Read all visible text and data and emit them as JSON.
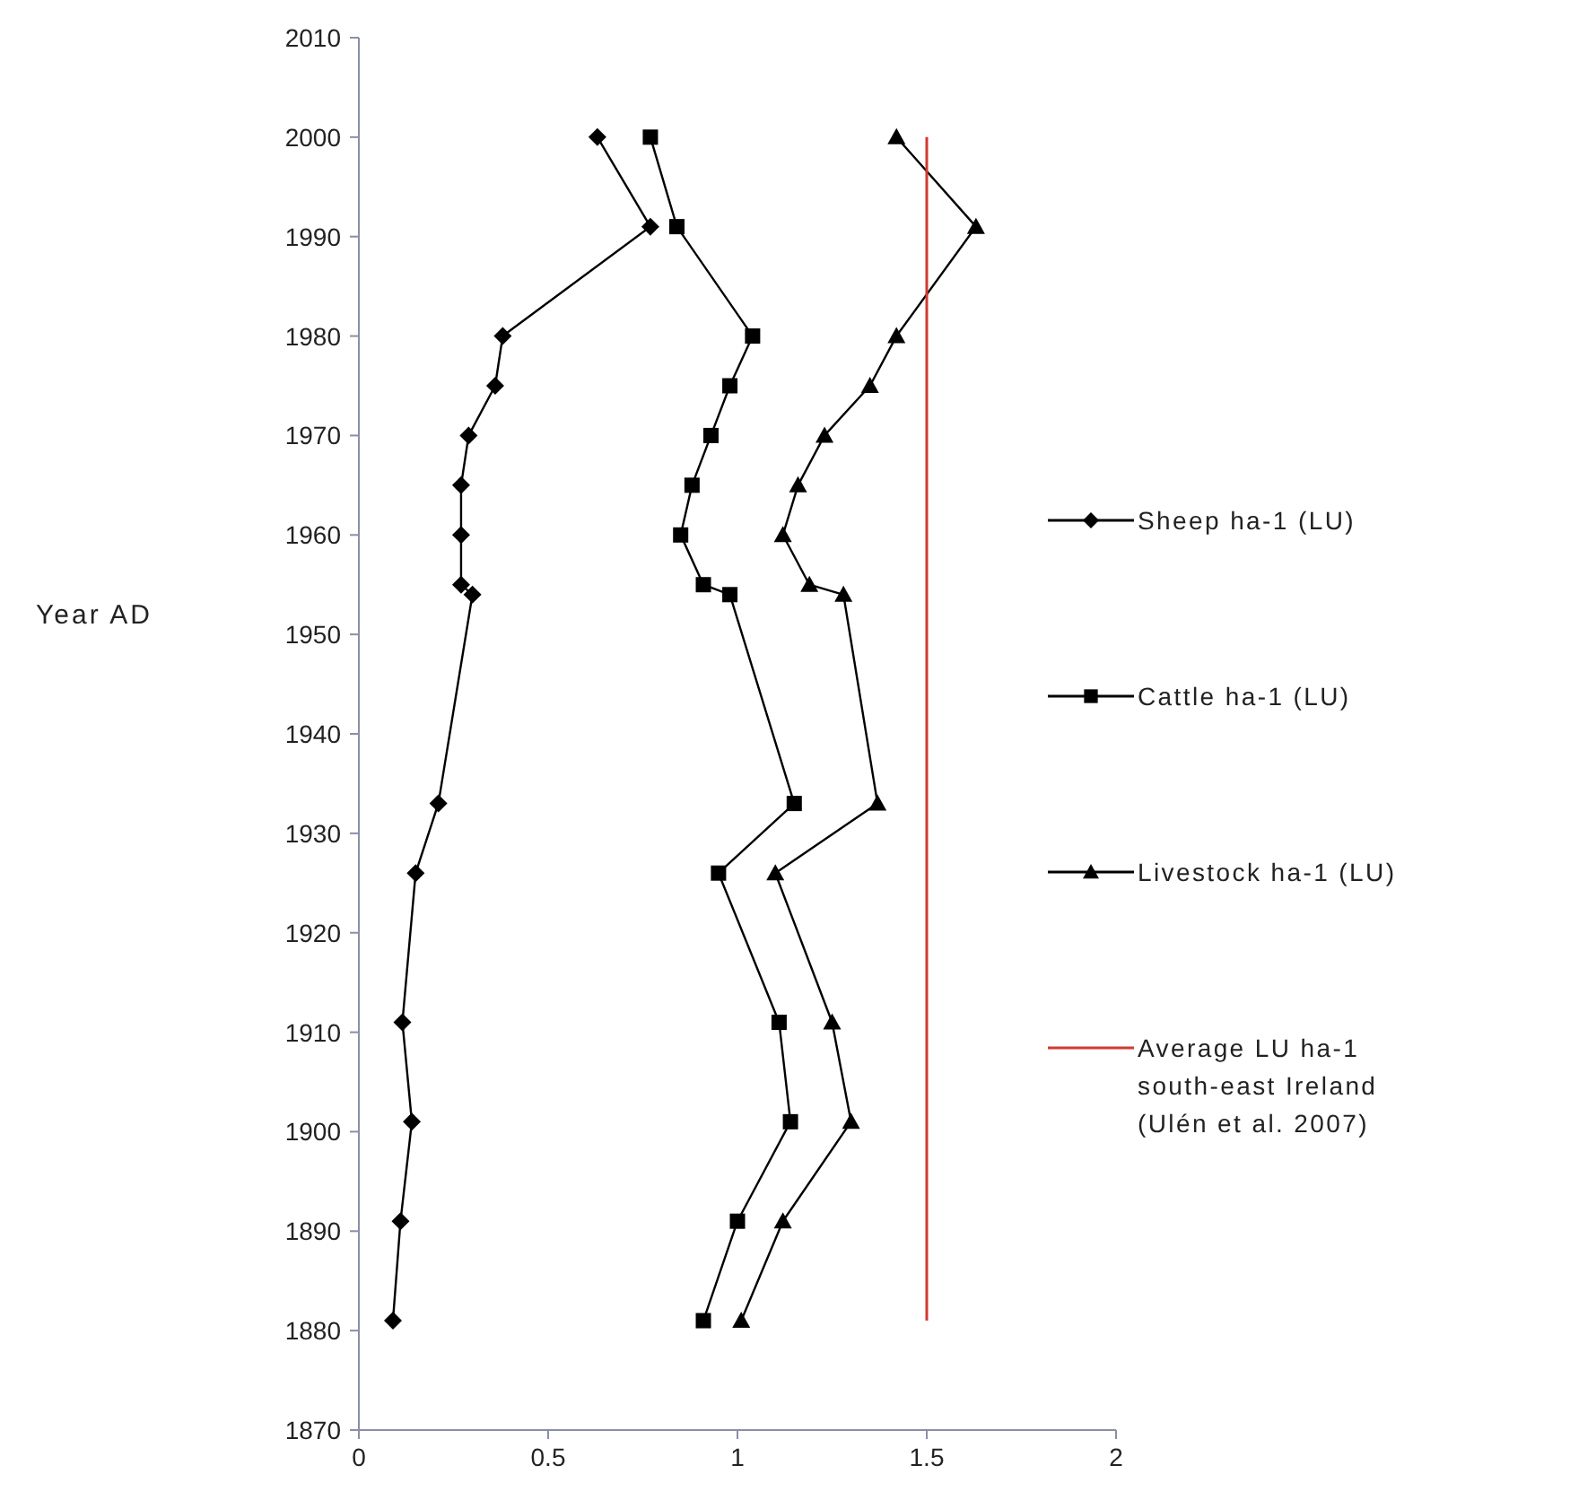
{
  "chart_data": {
    "type": "line",
    "ylabel": "Year AD",
    "xlim": [
      0,
      2
    ],
    "xticks": [
      0,
      0.5,
      1,
      1.5,
      2
    ],
    "ylim": [
      1870,
      2010
    ],
    "yticks": [
      1870,
      1880,
      1890,
      1900,
      1910,
      1920,
      1930,
      1940,
      1950,
      1960,
      1970,
      1980,
      1990,
      2000,
      2010
    ],
    "grid": false,
    "legend": "right",
    "line_style": "solid",
    "series": [
      {
        "name": "Sheep ha-1 (LU)",
        "color": "#000000",
        "marker": "diamond",
        "x": [
          0.63,
          0.77,
          0.38,
          0.36,
          0.29,
          0.27,
          0.27,
          0.27,
          0.3,
          0.21,
          0.15,
          0.115,
          0.14,
          0.11,
          0.09
        ],
        "values": [
          2000,
          1991,
          1980,
          1975,
          1970,
          1965,
          1960,
          1955,
          1954,
          1933,
          1926,
          1911,
          1901,
          1891,
          1881
        ]
      },
      {
        "name": "Cattle ha-1 (LU)",
        "color": "#000000",
        "marker": "square",
        "x": [
          0.77,
          0.84,
          1.04,
          0.98,
          0.93,
          0.88,
          0.85,
          0.91,
          0.98,
          1.15,
          0.95,
          1.11,
          1.14,
          1.0,
          0.91
        ],
        "values": [
          2000,
          1991,
          1980,
          1975,
          1970,
          1965,
          1960,
          1955,
          1954,
          1933,
          1926,
          1911,
          1901,
          1891,
          1881
        ]
      },
      {
        "name": "Livestock ha-1 (LU)",
        "color": "#000000",
        "marker": "triangle",
        "x": [
          1.42,
          1.63,
          1.42,
          1.35,
          1.23,
          1.16,
          1.12,
          1.19,
          1.28,
          1.37,
          1.1,
          1.25,
          1.3,
          1.12,
          1.01
        ],
        "values": [
          2000,
          1991,
          1980,
          1975,
          1970,
          1965,
          1960,
          1955,
          1954,
          1933,
          1926,
          1911,
          1901,
          1891,
          1881
        ]
      },
      {
        "name": "Average LU ha-1 south-east Ireland (Ulén et al. 2007)",
        "color": "#d03a30",
        "marker": "none",
        "x": [
          1.5,
          1.5
        ],
        "values": [
          1881,
          2000
        ]
      }
    ]
  }
}
